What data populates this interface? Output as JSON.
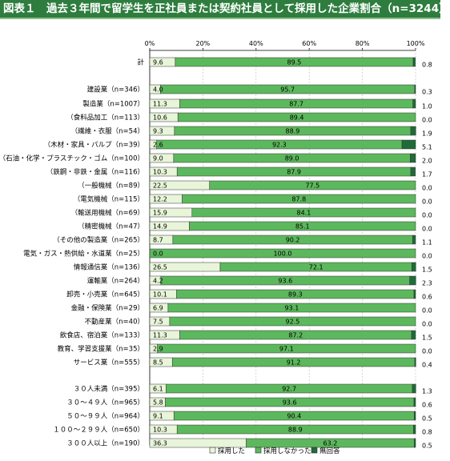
{
  "title": "図表１　過去３年間で留学生を正社員または契約社員として採用した企業割合（n=3244）",
  "colors": {
    "hired": "#e8f5d9",
    "not_hired": "#5cb85c",
    "no_answer": "#1f6b3a",
    "title_bg": "#2e7d3e"
  },
  "chart_data": {
    "type": "bar",
    "orientation": "horizontal",
    "stacked": true,
    "percent": true,
    "xlim": [
      0,
      100
    ],
    "x_ticks": [
      "0%",
      "20%",
      "40%",
      "60%",
      "80%",
      "100%"
    ],
    "legend_position": "bottom",
    "legend": [
      "採用した",
      "採用しなかった",
      "無回答"
    ],
    "categories": [
      "計",
      "建設業（n=346）",
      "製造業（n=1007）",
      "（食料品加工（n=113）",
      "（繊維・衣服（n=54）",
      "（木材・家具・パルプ（n=39）",
      "（石油・化学・プラスチック・ゴム（n=100）",
      "（鉄鋼・非鉄・金属（n=116）",
      "（一般機械（n=89）",
      "（電気機械（n=115）",
      "（輸送用機械（n=69）",
      "（精密機械（n=47）",
      "（その他の製造業（n=265）",
      "電気・ガス・熱供給・水道業（n=25）",
      "情報通信業（n=136）",
      "運輸業（n=264）",
      "卸売・小売業（n=645）",
      "金融・保険業（n=29）",
      "不動産業（n=40）",
      "飲食店、宿泊業（n=133）",
      "教育、学習支援業（n=35）",
      "サービス業（n=555）",
      "３０人未満（n=395）",
      "３０～４９人（n=965）",
      "５０～９９人（n=964）",
      "１００～２９９人（n=650）",
      "３００人以上（n=190）"
    ],
    "series": [
      {
        "name": "採用した",
        "values": [
          9.6,
          4.0,
          11.3,
          10.6,
          9.3,
          2.6,
          9.0,
          10.3,
          22.5,
          12.2,
          15.9,
          14.9,
          8.7,
          0.0,
          26.5,
          4.2,
          10.1,
          6.9,
          7.5,
          11.3,
          2.9,
          8.5,
          6.1,
          5.8,
          9.1,
          10.3,
          36.3
        ]
      },
      {
        "name": "採用しなかった",
        "values": [
          89.5,
          95.7,
          87.7,
          89.4,
          88.9,
          92.3,
          89.0,
          87.9,
          77.5,
          87.8,
          84.1,
          85.1,
          90.2,
          100.0,
          72.1,
          93.6,
          89.3,
          93.1,
          92.5,
          87.2,
          97.1,
          91.2,
          92.7,
          93.6,
          90.4,
          88.9,
          63.2
        ]
      },
      {
        "name": "無回答",
        "values": [
          0.8,
          0.3,
          1.0,
          0.0,
          1.9,
          5.1,
          2.0,
          1.7,
          0.0,
          0.0,
          0.0,
          0.0,
          1.1,
          0.0,
          1.5,
          2.3,
          0.6,
          0.0,
          0.0,
          1.5,
          0.0,
          0.4,
          1.3,
          0.6,
          0.5,
          0.8,
          0.5
        ]
      }
    ],
    "hired_labels": [
      "9.6",
      "4.0",
      "11.3",
      "10.6",
      "9.3",
      "2.6",
      "9.0",
      "10.3",
      "22.5",
      "12.2",
      "15.9",
      "14.9",
      "8.7",
      "0.0",
      "26.5",
      "4.2",
      "10.1",
      "6.9",
      "7.5",
      "11.3",
      "2.9",
      "8.5",
      "6.1",
      "5.8",
      "9.1",
      "10.3",
      "36.3"
    ],
    "not_hired_labels": [
      "89.5",
      "95.7",
      "87.7",
      "89.4",
      "88.9",
      "92.3",
      "89.0",
      "87.9",
      "77.5",
      "87.8",
      "84.1",
      "85.1",
      "90.2",
      "100.0",
      "72.1",
      "93.6",
      "89.3",
      "93.1",
      "92.5",
      "87.2",
      "97.1",
      "91.2",
      "92.7",
      "93.6",
      "90.4",
      "88.9",
      "63.2"
    ],
    "no_answer_labels": [
      "0.8",
      "0.3",
      "1.0",
      "0.0",
      "1.9",
      "5.1",
      "2.0",
      "1.7",
      "0.0",
      "0.0",
      "0.0",
      "0.0",
      "1.1",
      "0.0",
      "1.5",
      "2.3",
      "0.6",
      "0.0",
      "0.0",
      "1.5",
      "0.0",
      "0.4",
      "1.3",
      "0.6",
      "0.5",
      "0.8",
      "0.5"
    ]
  }
}
